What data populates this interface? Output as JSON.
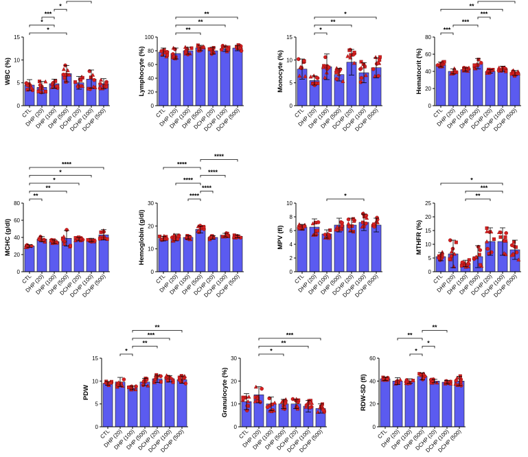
{
  "colors": {
    "bar": "#5b5bf0",
    "bar_edge": "#1a1a1a",
    "point": "#d62020",
    "point_edge": "#7a0a0a",
    "axis": "#000000"
  },
  "chart_data": [
    {
      "id": "wbc",
      "type": "bar",
      "ylabel": "WBC (%)",
      "categories": [
        "CTL",
        "DHP (20)",
        "DHP (100)",
        "DHP (500)",
        "DCHP (20)",
        "DCHP (100)",
        "DCHP (500)"
      ],
      "values": [
        4.5,
        4.0,
        4.8,
        7.0,
        5.0,
        5.8,
        4.8
      ],
      "errors": [
        1.2,
        1.3,
        1.0,
        1.8,
        1.4,
        2.0,
        1.1
      ],
      "ylim": [
        0,
        15
      ],
      "yticks": [
        0,
        5,
        10,
        15
      ],
      "brackets": [
        {
          "from": 0,
          "to": 3,
          "label": "*"
        },
        {
          "from": 0,
          "to": 2,
          "label": "*"
        },
        {
          "from": 1,
          "to": 2,
          "label": "***"
        },
        {
          "from": 2,
          "to": 3,
          "label": "*"
        },
        {
          "from": 3,
          "to": 5,
          "label": "**"
        }
      ]
    },
    {
      "id": "lymphocyte",
      "type": "bar",
      "ylabel": "Lymphocyte (%)",
      "categories": [
        "CTL",
        "DHP (20)",
        "DHP (100)",
        "DHP (500)",
        "DCHP (20)",
        "DCHP (100)",
        "DCHP (500)"
      ],
      "values": [
        78,
        76,
        80,
        84,
        80,
        83,
        84
      ],
      "errors": [
        6,
        8,
        5,
        4,
        5,
        4,
        4
      ],
      "ylim": [
        0,
        100
      ],
      "yticks": [
        0,
        20,
        40,
        60,
        80,
        100
      ],
      "brackets": [
        {
          "from": 1,
          "to": 3,
          "label": "**"
        },
        {
          "from": 1,
          "to": 5,
          "label": "**"
        },
        {
          "from": 1,
          "to": 6,
          "label": "**"
        }
      ]
    },
    {
      "id": "monocyte",
      "type": "bar",
      "ylabel": "Monocyte (%)",
      "categories": [
        "CTL",
        "DHP (20)",
        "DHP (100)",
        "DHP (500)",
        "DCHP (20)",
        "DCHP (100)",
        "DCHP (500)"
      ],
      "values": [
        8.0,
        5.5,
        8.5,
        6.8,
        9.5,
        7.2,
        8.3
      ],
      "errors": [
        2.2,
        1.0,
        2.8,
        1.4,
        2.8,
        2.2,
        2.2
      ],
      "ylim": [
        0,
        15
      ],
      "yticks": [
        0,
        5,
        10,
        15
      ],
      "brackets": [
        {
          "from": 1,
          "to": 2,
          "label": "*"
        },
        {
          "from": 1,
          "to": 4,
          "label": "**"
        },
        {
          "from": 1,
          "to": 6,
          "label": "*"
        }
      ]
    },
    {
      "id": "hematocrit",
      "type": "bar",
      "ylabel": "Hematocrit (%)",
      "categories": [
        "CTL",
        "DHP (20)",
        "DHP (100)",
        "DHP (500)",
        "DCHP (20)",
        "DCHP (100)",
        "DCHP (500)"
      ],
      "values": [
        48,
        40,
        42,
        49,
        40,
        43,
        38
      ],
      "errors": [
        3,
        3,
        2,
        6,
        2,
        3,
        3
      ],
      "ylim": [
        0,
        80
      ],
      "yticks": [
        0,
        20,
        40,
        60,
        80
      ],
      "brackets": [
        {
          "from": 0,
          "to": 1,
          "label": "***"
        },
        {
          "from": 1,
          "to": 3,
          "label": "***"
        },
        {
          "from": 3,
          "to": 4,
          "label": "***"
        },
        {
          "from": 0,
          "to": 5,
          "label": "**"
        },
        {
          "from": 3,
          "to": 6,
          "label": "****"
        },
        {
          "from": 0,
          "to": 6,
          "label": "****"
        }
      ]
    },
    {
      "id": "mchc",
      "type": "bar",
      "ylabel": "MCHC (g/dl)",
      "categories": [
        "CTL",
        "DHP (20)",
        "DHP (100)",
        "DHP (500)",
        "DCHP (20)",
        "DCHP (100)",
        "DCHP (500)"
      ],
      "values": [
        30,
        38,
        35,
        39,
        38,
        37,
        43
      ],
      "errors": [
        1.5,
        3,
        2,
        9,
        2,
        2,
        6
      ],
      "ylim": [
        0,
        80
      ],
      "yticks": [
        0,
        20,
        40,
        60,
        80
      ],
      "brackets": [
        {
          "from": 0,
          "to": 1,
          "label": "**"
        },
        {
          "from": 0,
          "to": 3,
          "label": "**"
        },
        {
          "from": 0,
          "to": 4,
          "label": "*"
        },
        {
          "from": 0,
          "to": 5,
          "label": "*"
        },
        {
          "from": 0,
          "to": 6,
          "label": "****"
        }
      ]
    },
    {
      "id": "hemoglobin",
      "type": "bar",
      "ylabel": "Hemoglobin (g/dl)",
      "categories": [
        "CTL",
        "DHP (20)",
        "DHP (100)",
        "DHP (500)",
        "DCHP (20)",
        "DCHP (100)",
        "DCHP (500)"
      ],
      "values": [
        14.5,
        15.0,
        15.0,
        18.5,
        15.0,
        16.0,
        15.5
      ],
      "errors": [
        1.0,
        1.5,
        0.8,
        1.5,
        0.8,
        0.8,
        0.6
      ],
      "ylim": [
        0,
        30
      ],
      "yticks": [
        0,
        10,
        20,
        30
      ],
      "brackets": [
        {
          "from": 2,
          "to": 3,
          "label": "****"
        },
        {
          "from": 3,
          "to": 4,
          "label": "****"
        },
        {
          "from": 1,
          "to": 3,
          "label": "****"
        },
        {
          "from": 3,
          "to": 5,
          "label": "****"
        },
        {
          "from": 0,
          "to": 3,
          "label": "****"
        },
        {
          "from": 3,
          "to": 6,
          "label": "****"
        }
      ]
    },
    {
      "id": "mpv",
      "type": "bar",
      "ylabel": "MPV (fl)",
      "categories": [
        "CTL",
        "DHP (20)",
        "DHP (100)",
        "DHP (500)",
        "DCHP (20)",
        "DCHP (100)",
        "DCHP (500)"
      ],
      "values": [
        6.5,
        6.5,
        5.5,
        6.8,
        6.8,
        7.2,
        6.8
      ],
      "errors": [
        0.4,
        1.2,
        0.6,
        1.0,
        1.0,
        1.2,
        1.0
      ],
      "ylim": [
        0,
        10
      ],
      "yticks": [
        0,
        2,
        4,
        6,
        8,
        10
      ],
      "brackets": [
        {
          "from": 2,
          "to": 5,
          "label": "*"
        }
      ]
    },
    {
      "id": "mthfr",
      "type": "bar",
      "ylabel": "MTHFR (%)",
      "categories": [
        "CTL",
        "DHP (20)",
        "DHP (100)",
        "DHP (500)",
        "DCHP (20)",
        "DCHP (100)",
        "DCHP (500)"
      ],
      "values": [
        5.5,
        6.5,
        3.0,
        5.5,
        11.0,
        11.0,
        8.0
      ],
      "errors": [
        1.5,
        5.0,
        1.2,
        4.0,
        5.0,
        5.0,
        3.5
      ],
      "ylim": [
        0,
        25
      ],
      "yticks": [
        0,
        5,
        10,
        15,
        20,
        25
      ],
      "brackets": [
        {
          "from": 2,
          "to": 4,
          "label": "**"
        },
        {
          "from": 2,
          "to": 5,
          "label": "***"
        },
        {
          "from": 0,
          "to": 5,
          "label": "*"
        }
      ]
    },
    {
      "id": "pdw",
      "type": "bar",
      "ylabel": "PDW",
      "categories": [
        "CTL",
        "DHP (20)",
        "DHP (100)",
        "DHP (500)",
        "DCHP (20)",
        "DCHP (100)",
        "DCHP (500)"
      ],
      "values": [
        9.5,
        9.8,
        8.5,
        9.8,
        10.5,
        10.5,
        10.3
      ],
      "errors": [
        0.4,
        1.0,
        0.4,
        0.8,
        0.8,
        0.7,
        0.8
      ],
      "ylim": [
        0,
        15
      ],
      "yticks": [
        0,
        5,
        10,
        15
      ],
      "brackets": [
        {
          "from": 1,
          "to": 2,
          "label": "*"
        },
        {
          "from": 2,
          "to": 4,
          "label": "**"
        },
        {
          "from": 2,
          "to": 5,
          "label": "***"
        },
        {
          "from": 2,
          "to": 6,
          "label": "**"
        }
      ]
    },
    {
      "id": "granulocyte",
      "type": "bar",
      "ylabel": "Granulocyte (%)",
      "categories": [
        "CTL",
        "DHP (20)",
        "DHP (100)",
        "DHP (500)",
        "DCHP (20)",
        "DCHP (100)",
        "DCHP (500)"
      ],
      "values": [
        11,
        14,
        10,
        10,
        10,
        9,
        8
      ],
      "errors": [
        3.5,
        3.5,
        3.0,
        2.0,
        2.0,
        2.5,
        2.0
      ],
      "ylim": [
        0,
        30
      ],
      "yticks": [
        0,
        10,
        20,
        30
      ],
      "brackets": [
        {
          "from": 1,
          "to": 3,
          "label": "*"
        },
        {
          "from": 1,
          "to": 5,
          "label": "**"
        },
        {
          "from": 1,
          "to": 6,
          "label": "***"
        }
      ]
    },
    {
      "id": "rdwsd",
      "type": "bar",
      "ylabel": "RDW-SD (fl)",
      "categories": [
        "CTL",
        "DHP (20)",
        "DHP (100)",
        "DHP (500)",
        "DCHP (20)",
        "DCHP (100)",
        "DCHP (500)"
      ],
      "values": [
        42,
        40,
        40,
        44,
        40,
        39,
        40
      ],
      "errors": [
        1.5,
        3.0,
        2.0,
        3.0,
        1.5,
        1.5,
        4.0
      ],
      "ylim": [
        0,
        60
      ],
      "yticks": [
        0,
        20,
        40,
        60
      ],
      "brackets": [
        {
          "from": 2,
          "to": 3,
          "label": "*"
        },
        {
          "from": 3,
          "to": 4,
          "label": "*"
        },
        {
          "from": 1,
          "to": 3,
          "label": "**"
        },
        {
          "from": 3,
          "to": 5,
          "label": "**"
        }
      ]
    }
  ]
}
